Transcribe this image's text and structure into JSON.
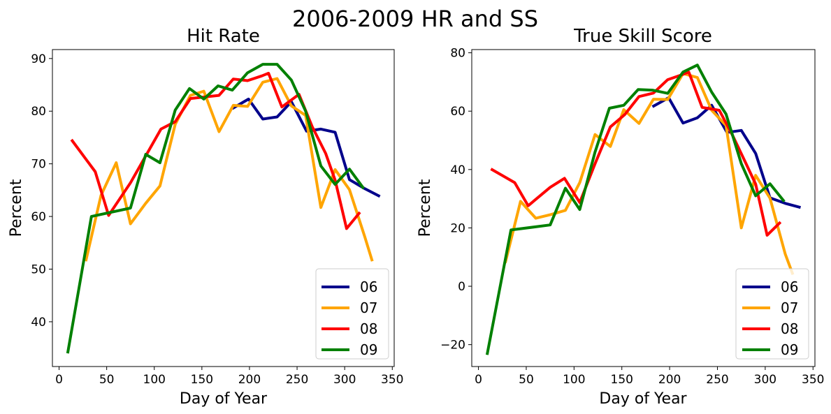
{
  "figure": {
    "title": "2006-2009 HR and SS"
  },
  "chart_data": [
    {
      "type": "line",
      "title": "Hit Rate",
      "xlabel": "Day of Year",
      "ylabel": "Percent",
      "xlim": [
        -7,
        352
      ],
      "ylim": [
        31.5,
        91.7
      ],
      "xticks": [
        0,
        50,
        100,
        150,
        200,
        250,
        300,
        350
      ],
      "yticks": [
        40,
        50,
        60,
        70,
        80,
        90
      ],
      "legend_position": "lower right",
      "series": [
        {
          "name": "06",
          "color": "#00008b",
          "x": [
            182,
            199,
            214,
            229,
            244,
            260,
            275,
            290,
            305,
            321,
            337
          ],
          "y": [
            80.5,
            82.3,
            78.5,
            78.9,
            81.8,
            76.2,
            76.6,
            76.0,
            67.0,
            65.3,
            63.8
          ]
        },
        {
          "name": "07",
          "color": "#ffa500",
          "x": [
            28,
            44,
            60,
            75,
            91,
            106,
            122,
            138,
            152,
            168,
            183,
            198,
            214,
            229,
            244,
            259,
            275,
            290,
            305,
            321,
            329
          ],
          "y": [
            51.5,
            64.0,
            70.2,
            58.6,
            62.5,
            65.8,
            77.5,
            83.0,
            83.8,
            76.1,
            81.1,
            80.9,
            85.5,
            86.2,
            81.0,
            79.2,
            61.7,
            68.9,
            65.1,
            56.2,
            51.5
          ]
        },
        {
          "name": "08",
          "color": "#ff0000",
          "x": [
            13,
            38,
            52,
            75,
            107,
            122,
            138,
            153,
            168,
            183,
            198,
            213,
            220,
            234,
            252,
            266,
            280,
            290,
            302,
            316
          ],
          "y": [
            74.6,
            68.5,
            60.2,
            66.4,
            76.6,
            78.0,
            82.4,
            82.7,
            83.0,
            86.1,
            85.8,
            86.7,
            87.2,
            80.8,
            83.2,
            77.0,
            72.0,
            66.9,
            57.7,
            60.8
          ]
        },
        {
          "name": "09",
          "color": "#008000",
          "x": [
            9,
            34,
            75,
            91,
            106,
            122,
            137,
            152,
            167,
            182,
            198,
            214,
            229,
            244,
            259,
            275,
            290,
            305,
            320
          ],
          "y": [
            34.0,
            60.0,
            61.6,
            71.8,
            70.2,
            80.2,
            84.3,
            82.3,
            84.8,
            84.0,
            87.3,
            88.9,
            88.9,
            85.9,
            80.0,
            69.6,
            66.1,
            69.0,
            65.3
          ]
        }
      ]
    },
    {
      "type": "line",
      "title": "True Skill Score",
      "xlabel": "Day of Year",
      "ylabel": "Percent",
      "xlim": [
        -7,
        352
      ],
      "ylim": [
        -27.5,
        81.1
      ],
      "xticks": [
        0,
        50,
        100,
        150,
        200,
        250,
        300,
        350
      ],
      "yticks": [
        -20,
        0,
        20,
        40,
        60,
        80
      ],
      "legend_position": "lower right",
      "series": [
        {
          "name": "06",
          "color": "#00008b",
          "x": [
            182,
            199,
            214,
            229,
            244,
            260,
            275,
            290,
            305,
            321,
            337
          ],
          "y": [
            61.5,
            64.6,
            55.9,
            57.7,
            62.0,
            52.7,
            53.4,
            45.5,
            30.3,
            28.4,
            27.0
          ]
        },
        {
          "name": "07",
          "color": "#ffa500",
          "x": [
            28,
            44,
            60,
            75,
            91,
            106,
            122,
            138,
            152,
            168,
            183,
            198,
            214,
            229,
            244,
            259,
            275,
            290,
            305,
            321,
            329
          ],
          "y": [
            8.0,
            29.1,
            23.3,
            24.5,
            26.0,
            35.5,
            52.0,
            47.9,
            60.5,
            55.8,
            64.1,
            64.0,
            72.9,
            71.5,
            60.3,
            55.1,
            20.0,
            38.0,
            30.2,
            11.0,
            4.0
          ]
        },
        {
          "name": "08",
          "color": "#ff0000",
          "x": [
            13,
            38,
            52,
            75,
            90,
            106,
            122,
            138,
            153,
            168,
            183,
            198,
            213,
            220,
            234,
            252,
            266,
            280,
            290,
            302,
            316
          ],
          "y": [
            40.2,
            35.5,
            27.6,
            33.9,
            37.0,
            28.7,
            42.0,
            54.6,
            58.8,
            65.0,
            66.2,
            70.8,
            72.5,
            73.4,
            61.3,
            60.3,
            51.6,
            42.0,
            35.0,
            17.5,
            22.0
          ]
        },
        {
          "name": "09",
          "color": "#008000",
          "x": [
            9,
            34,
            75,
            91,
            106,
            122,
            137,
            152,
            167,
            182,
            198,
            214,
            229,
            244,
            259,
            275,
            290,
            305,
            320
          ],
          "y": [
            -23.5,
            19.3,
            21.0,
            33.6,
            26.3,
            46.0,
            61.0,
            62.0,
            67.4,
            67.2,
            66.1,
            73.4,
            75.8,
            66.5,
            59.0,
            42.0,
            31.0,
            35.1,
            29.0
          ]
        }
      ]
    }
  ]
}
